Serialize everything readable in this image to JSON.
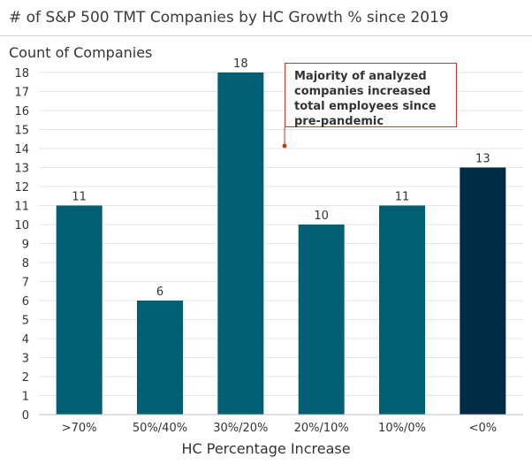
{
  "chart_data": {
    "type": "bar",
    "title": "# of S&P 500 TMT Companies by HC Growth % since 2019",
    "ylabel": "Count of Companies",
    "xlabel": "HC Percentage Increase",
    "categories": [
      ">70%",
      "50%/40%",
      "30%/20%",
      "20%/10%",
      "10%/0%",
      "<0%"
    ],
    "values": [
      11,
      6,
      18,
      10,
      11,
      13
    ],
    "ylim": [
      0,
      18
    ],
    "yticks": [
      0,
      1,
      2,
      3,
      4,
      5,
      6,
      7,
      8,
      9,
      10,
      11,
      12,
      13,
      14,
      15,
      16,
      17,
      18
    ],
    "bar_colors": [
      "#005f73",
      "#005f73",
      "#005f73",
      "#005f73",
      "#005f73",
      "#002b45"
    ],
    "grid": true,
    "annotation": "Majority of analyzed companies increased total employees since pre-pandemic",
    "annotation_color": "#c0392b"
  }
}
